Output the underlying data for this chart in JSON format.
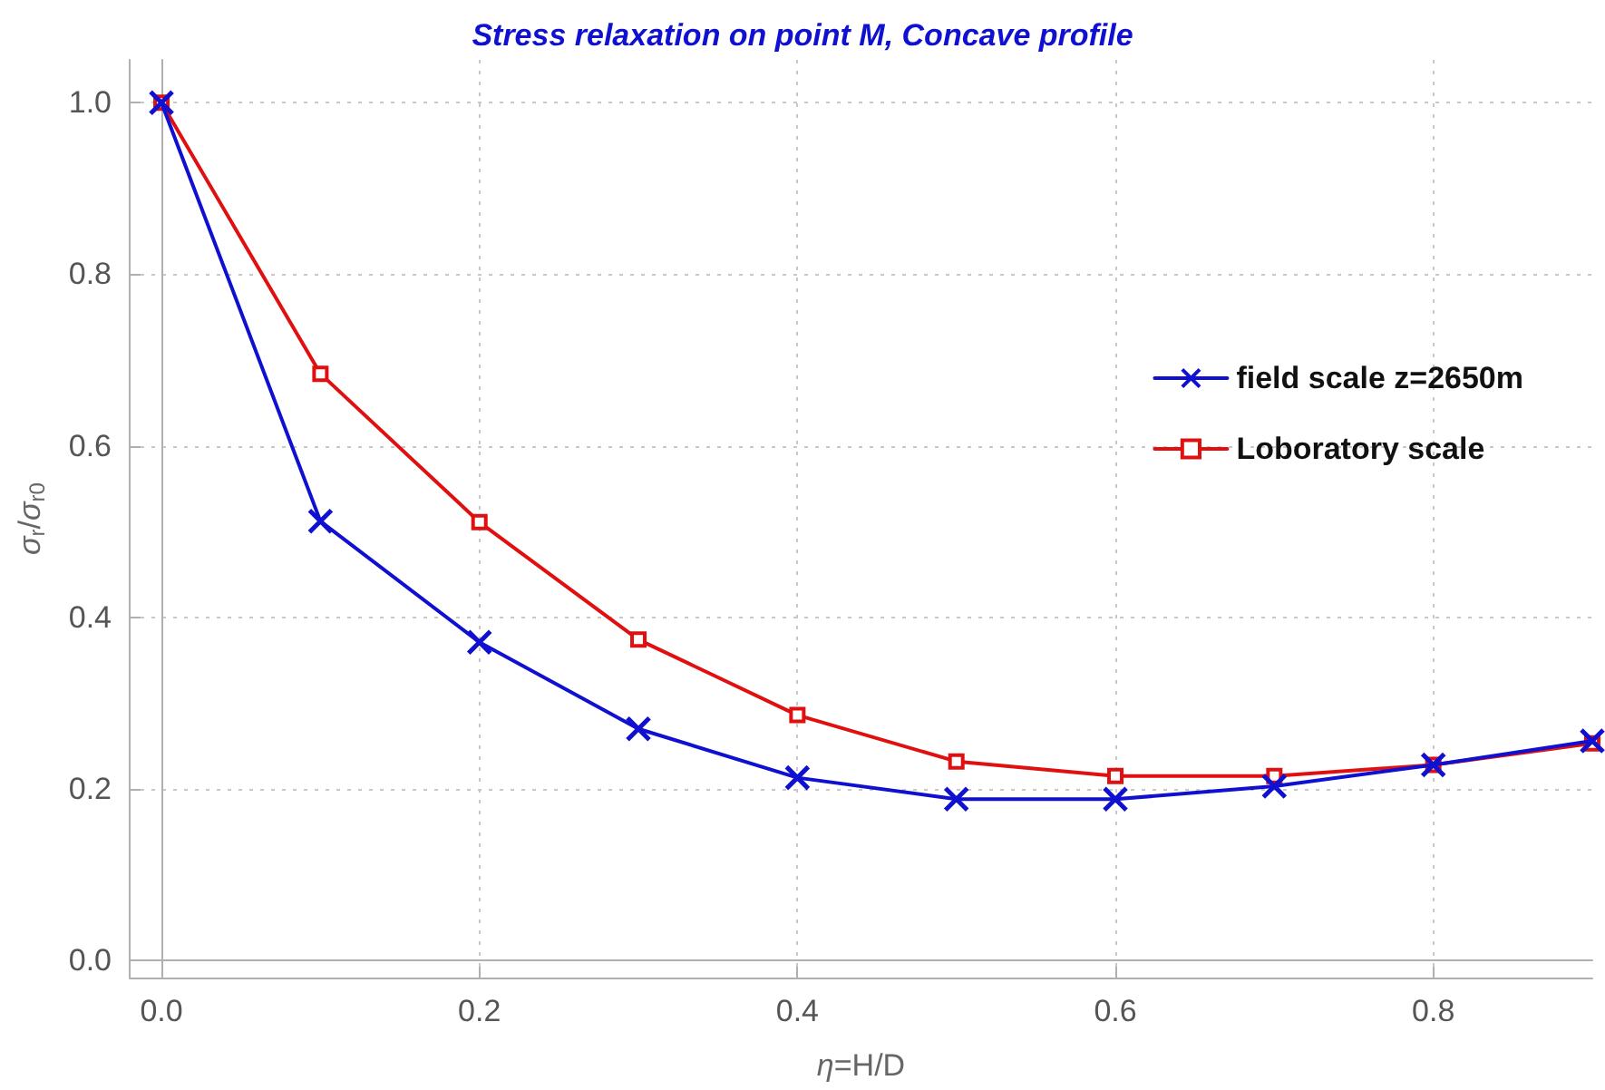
{
  "chart_data": {
    "type": "line",
    "title": "Stress relaxation on point M, Concave profile",
    "xlabel": "η=H/D",
    "ylabel": "σ$_{r}$/σ$_{r0}$",
    "x": [
      0,
      0.1,
      0.2,
      0.3,
      0.4,
      0.5,
      0.6,
      0.7,
      0.8,
      0.9
    ],
    "series": [
      {
        "name": "field scale z=2650m",
        "color": "#1010d0",
        "marker": "cross",
        "values": [
          1.0,
          0.512,
          0.371,
          0.27,
          0.213,
          0.188,
          0.188,
          0.203,
          0.228,
          0.256
        ]
      },
      {
        "name": "Loboratory scale",
        "color": "#e01010",
        "marker": "square",
        "values": [
          1.0,
          0.684,
          0.511,
          0.374,
          0.286,
          0.232,
          0.215,
          0.215,
          0.228,
          0.253
        ]
      }
    ],
    "xlim": [
      -0.02,
      0.9
    ],
    "ylim": [
      -0.02,
      1.05
    ],
    "xticks": [
      {
        "value": 0,
        "label": "0.0"
      },
      {
        "value": 0.2,
        "label": "0.2"
      },
      {
        "value": 0.4,
        "label": "0.4"
      },
      {
        "value": 0.6,
        "label": "0.6"
      },
      {
        "value": 0.8,
        "label": "0.8"
      }
    ],
    "yticks": [
      {
        "value": 0,
        "label": "0.0"
      },
      {
        "value": 0.2,
        "label": "0.2"
      },
      {
        "value": 0.4,
        "label": "0.4"
      },
      {
        "value": 0.6,
        "label": "0.6"
      },
      {
        "value": 0.8,
        "label": "0.8"
      },
      {
        "value": 1,
        "label": "1.0"
      }
    ],
    "grid": true,
    "legend": "right",
    "line_style": "solid"
  }
}
